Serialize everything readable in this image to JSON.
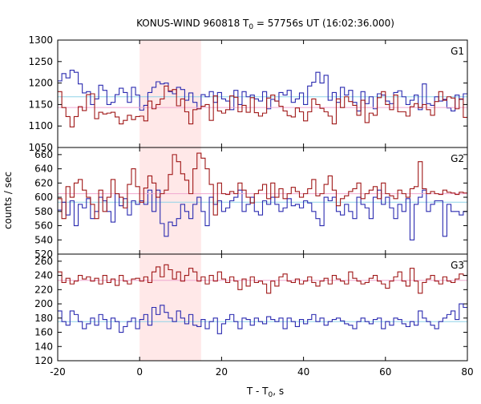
{
  "chart_data": {
    "type": "line",
    "title": "KONUS-WIND 960818 T₀ = 57756s UT (16:02:36.000)",
    "title_parts": {
      "prefix": "KONUS-WIND 960818 T",
      "subscript": "0",
      "suffix": " = 57756s UT (16:02:36.000)"
    },
    "xlabel": "T - T₀, s",
    "xlabel_parts": {
      "prefix": "T - T",
      "subscript": "0",
      "suffix": ", s"
    },
    "ylabel": "counts / sec",
    "xlim": [
      -20,
      80
    ],
    "xticks": [
      "-20",
      "0",
      "20",
      "40",
      "60",
      "80"
    ],
    "grid": false,
    "highlight": {
      "x_range": [
        0,
        15
      ],
      "color": "#ffe8e8"
    },
    "colors": {
      "blue": "#2b2bb0",
      "red": "#a01818",
      "cyan": "#8fd3e8",
      "pink": "#f0a8d0"
    },
    "panels": [
      {
        "name": "G1",
        "ylim": [
          1050,
          1300
        ],
        "yticks": [
          "1050",
          "1100",
          "1150",
          "1200",
          "1250",
          "1300"
        ],
        "series": [
          {
            "color": "blue",
            "bin": 1,
            "mean": 1168,
            "mean_color": "cyan",
            "values": [
              1205,
              1222,
              1212,
              1230,
              1225,
              1198,
              1177,
              1180,
              1150,
              1163,
              1195,
              1183,
              1150,
              1155,
              1173,
              1188,
              1178,
              1155,
              1190,
              1172,
              1137,
              1148,
              1178,
              1190,
              1203,
              1198,
              1200,
              1180,
              1175,
              1190,
              1185,
              1160,
              1177,
              1155,
              1140,
              1173,
              1168,
              1180,
              1155,
              1178,
              1163,
              1158,
              1138,
              1183,
              1150,
              1180,
              1168,
              1172,
              1163,
              1158,
              1180,
              1140,
              1162,
              1158,
              1178,
              1172,
              1183,
              1155,
              1163,
              1177,
              1150,
              1193,
              1202,
              1225,
              1200,
              1218,
              1160,
              1178,
              1155,
              1190,
              1172,
              1183,
              1155,
              1135,
              1180,
              1152,
              1168,
              1140,
              1175,
              1172,
              1158,
              1152,
              1178,
              1182,
              1168,
              1150,
              1160,
              1172,
              1138,
              1198,
              1152,
              1148,
              1168,
              1158,
              1162,
              1142,
              1135,
              1172,
              1162,
              1175
            ]
          },
          {
            "color": "red",
            "bin": 1,
            "mean": 1143,
            "mean_color": "pink",
            "values": [
              1180,
              1143,
              1122,
              1098,
              1122,
              1145,
              1136,
              1173,
              1175,
              1117,
              1132,
              1128,
              1130,
              1132,
              1121,
              1105,
              1113,
              1125,
              1115,
              1122,
              1123,
              1112,
              1158,
              1140,
              1150,
              1163,
              1193,
              1182,
              1185,
              1147,
              1163,
              1133,
              1105,
              1138,
              1140,
              1146,
              1150,
              1113,
              1170,
              1135,
              1130,
              1138,
              1170,
              1167,
              1133,
              1148,
              1132,
              1166,
              1131,
              1123,
              1130,
              1165,
              1172,
              1158,
              1146,
              1135,
              1124,
              1121,
              1142,
              1133,
              1112,
              1133,
              1163,
              1150,
              1141,
              1133,
              1123,
              1105,
              1163,
              1143,
              1168,
              1157,
              1148,
              1125,
              1160,
              1108,
              1130,
              1125,
              1166,
              1180,
              1150,
              1138,
              1172,
              1133,
              1133,
              1123,
              1145,
              1152,
              1143,
              1150,
              1138,
              1125,
              1157,
              1180,
              1160,
              1168,
              1165,
              1140,
              1163,
              1120
            ]
          }
        ]
      },
      {
        "name": "G2",
        "ylim": [
          520,
          670
        ],
        "yticks": [
          "520",
          "540",
          "560",
          "580",
          "600",
          "620",
          "640",
          "660"
        ],
        "series": [
          {
            "color": "blue",
            "bin": 1,
            "mean": 593,
            "mean_color": "cyan",
            "values": [
              582,
              593,
              575,
              595,
              560,
              590,
              585,
              598,
              570,
              580,
              600,
              595,
              580,
              565,
              605,
              588,
              598,
              575,
              595,
              590,
              595,
              590,
              610,
              580,
              610,
              563,
              545,
              565,
              560,
              570,
              590,
              580,
              570,
              590,
              600,
              580,
              560,
              600,
              590,
              595,
              580,
              585,
              595,
              600,
              610,
              580,
              590,
              600,
              580,
              575,
              595,
              590,
              600,
              590,
              580,
              585,
              598,
              588,
              590,
              585,
              595,
              592,
              580,
              570,
              560,
              600,
              595,
              600,
              580,
              575,
              590,
              580,
              570,
              600,
              590,
              585,
              570,
              600,
              610,
              590,
              600,
              585,
              570,
              590,
              580,
              598,
              540,
              590,
              600,
              610,
              580,
              590,
              595,
              595,
              545,
              590,
              580,
              580,
              575,
              580
            ]
          },
          {
            "color": "red",
            "bin": 1,
            "mean": 605,
            "mean_color": "pink",
            "values": [
              598,
              570,
              615,
              600,
              620,
              625,
              610,
              600,
              590,
              570,
              610,
              580,
              600,
              625,
              605,
              600,
              585,
              618,
              640,
              615,
              593,
              613,
              630,
              620,
              600,
              605,
              610,
              632,
              660,
              650,
              633,
              624,
              605,
              640,
              662,
              655,
              640,
              618,
              575,
              620,
              605,
              604,
              608,
              605,
              620,
              610,
              600,
              592,
              605,
              610,
              618,
              598,
              620,
              600,
              612,
              598,
              605,
              614,
              608,
              600,
              605,
              612,
              625,
              602,
              605,
              618,
              630,
              610,
              588,
              598,
              602,
              608,
              612,
              620,
              598,
              605,
              610,
              615,
              598,
              620,
              605,
              602,
              598,
              610,
              605,
              600,
              612,
              615,
              650,
              612,
              605,
              608,
              605,
              604,
              610,
              607,
              606,
              604,
              607,
              606
            ]
          }
        ]
      },
      {
        "name": "G3",
        "ylim": [
          120,
          270
        ],
        "yticks": [
          "120",
          "140",
          "160",
          "180",
          "200",
          "220",
          "240",
          "260"
        ],
        "series": [
          {
            "color": "blue",
            "bin": 1,
            "mean": 175,
            "mean_color": "cyan",
            "values": [
              190,
              175,
              170,
              190,
              185,
              175,
              165,
              172,
              180,
              170,
              185,
              178,
              165,
              180,
              175,
              160,
              168,
              175,
              180,
              165,
              178,
              185,
              170,
              195,
              185,
              198,
              188,
              180,
              175,
              190,
              180,
              172,
              185,
              170,
              168,
              178,
              165,
              175,
              180,
              158,
              172,
              178,
              185,
              175,
              165,
              180,
              178,
              170,
              180,
              175,
              172,
              182,
              178,
              175,
              180,
              165,
              180,
              175,
              168,
              178,
              172,
              178,
              185,
              175,
              180,
              170,
              175,
              178,
              180,
              176,
              172,
              170,
              165,
              175,
              180,
              175,
              172,
              178,
              180,
              165,
              175,
              170,
              180,
              178,
              172,
              168,
              175,
              170,
              190,
              180,
              175,
              170,
              165,
              175,
              180,
              185,
              190,
              178,
              200,
              195
            ]
          },
          {
            "color": "red",
            "bin": 1,
            "mean": 233,
            "mean_color": "pink",
            "values": [
              245,
              230,
              236,
              228,
              232,
              240,
              235,
              238,
              232,
              236,
              228,
              240,
              230,
              235,
              226,
              240,
              232,
              228,
              235,
              236,
              232,
              238,
              230,
              245,
              252,
              238,
              255,
              248,
              235,
              245,
              232,
              240,
              250,
              245,
              232,
              238,
              228,
              240,
              232,
              245,
              235,
              230,
              238,
              232,
              220,
              235,
              225,
              238,
              230,
              232,
              228,
              215,
              232,
              225,
              238,
              242,
              232,
              230,
              235,
              228,
              232,
              238,
              230,
              225,
              232,
              236,
              228,
              240,
              235,
              232,
              228,
              245,
              236,
              232,
              228,
              230,
              236,
              240,
              232,
              228,
              222,
              232,
              238,
              245,
              232,
              225,
              250,
              232,
              215,
              230,
              235,
              240,
              232,
              228,
              238,
              232,
              230,
              235,
              242,
              240
            ]
          }
        ]
      }
    ]
  }
}
